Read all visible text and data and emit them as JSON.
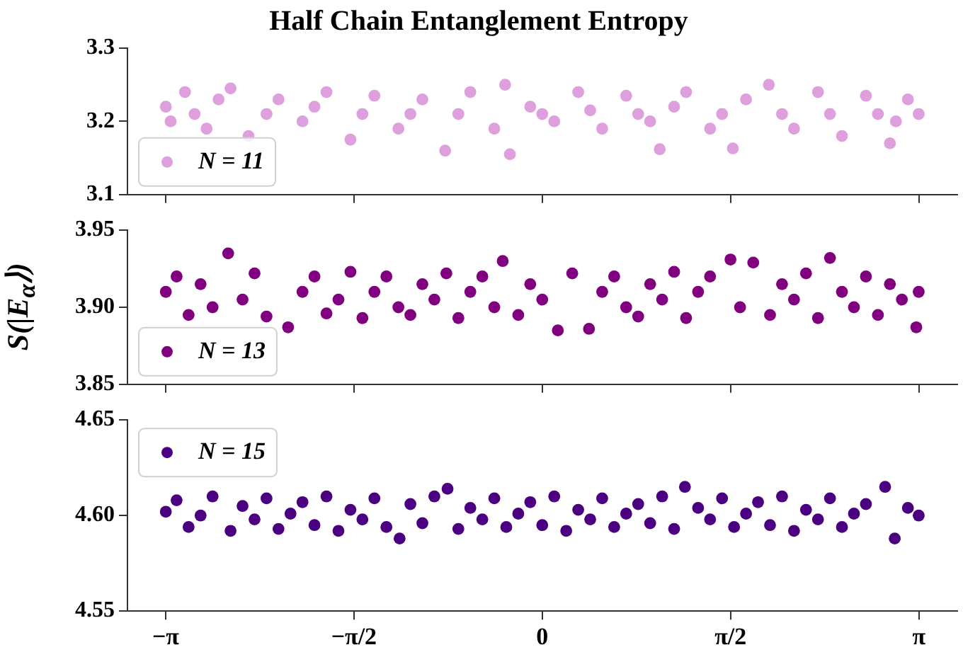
{
  "chart_data": [
    {
      "type": "scatter",
      "title": "Half Chain Entanglement Entropy",
      "xlim": [
        -3.46,
        3.46
      ],
      "xticks": [
        {
          "value": -3.1416,
          "label": null
        },
        {
          "value": -1.5708,
          "label": null
        },
        {
          "value": 0,
          "label": null
        },
        {
          "value": 1.5708,
          "label": null
        },
        {
          "value": 3.1416,
          "label": null
        }
      ],
      "ylim": [
        3.1,
        3.3
      ],
      "yticks": [
        3.1,
        3.2,
        3.3
      ],
      "tick_labels": "y",
      "grid": false,
      "marker": "circle",
      "legend": "bottom left",
      "series": [
        {
          "name": "N = 11",
          "color": "#dda0dd",
          "x": [
            -3.14,
            -3.1,
            -2.98,
            -2.9,
            -2.8,
            -2.7,
            -2.6,
            -2.45,
            -2.3,
            -2.2,
            -2.0,
            -1.9,
            -1.8,
            -1.6,
            -1.5,
            -1.4,
            -1.2,
            -1.1,
            -1.0,
            -0.81,
            -0.7,
            -0.6,
            -0.4,
            -0.31,
            -0.27,
            -0.1,
            0.0,
            0.1,
            0.3,
            0.4,
            0.5,
            0.7,
            0.8,
            0.9,
            0.98,
            1.1,
            1.2,
            1.4,
            1.5,
            1.59,
            1.7,
            1.89,
            2.0,
            2.1,
            2.3,
            2.4,
            2.5,
            2.7,
            2.8,
            2.9,
            2.95,
            3.05,
            3.14
          ],
          "values": [
            3.22,
            3.2,
            3.24,
            3.21,
            3.19,
            3.23,
            3.245,
            3.18,
            3.21,
            3.23,
            3.2,
            3.22,
            3.24,
            3.175,
            3.21,
            3.235,
            3.19,
            3.21,
            3.23,
            3.16,
            3.21,
            3.24,
            3.19,
            3.25,
            3.155,
            3.22,
            3.21,
            3.2,
            3.24,
            3.215,
            3.19,
            3.235,
            3.21,
            3.2,
            3.162,
            3.22,
            3.24,
            3.19,
            3.21,
            3.163,
            3.23,
            3.25,
            3.21,
            3.19,
            3.24,
            3.21,
            3.18,
            3.235,
            3.21,
            3.17,
            3.2,
            3.23,
            3.21
          ]
        }
      ]
    },
    {
      "type": "scatter",
      "ylabel": "S(|E$_{α}$⟩)",
      "xlim": [
        -3.46,
        3.46
      ],
      "xticks": [
        {
          "value": -3.1416,
          "label": null
        },
        {
          "value": -1.5708,
          "label": null
        },
        {
          "value": 0,
          "label": null
        },
        {
          "value": 1.5708,
          "label": null
        },
        {
          "value": 3.1416,
          "label": null
        }
      ],
      "ylim": [
        3.85,
        3.95
      ],
      "yticks": [
        {
          "value": 3.85,
          "label": "3.85"
        },
        {
          "value": 3.9,
          "label": "3.90"
        },
        {
          "value": 3.95,
          "label": "3.95"
        }
      ],
      "tick_labels": "y",
      "grid": false,
      "marker": "circle",
      "legend": "bottom left",
      "series": [
        {
          "name": "N = 13",
          "color": "#800080",
          "x": [
            -3.14,
            -3.05,
            -2.95,
            -2.85,
            -2.75,
            -2.62,
            -2.5,
            -2.4,
            -2.3,
            -2.12,
            -2.0,
            -1.9,
            -1.8,
            -1.7,
            -1.6,
            -1.5,
            -1.4,
            -1.3,
            -1.2,
            -1.1,
            -1.0,
            -0.9,
            -0.8,
            -0.7,
            -0.6,
            -0.5,
            -0.4,
            -0.33,
            -0.2,
            -0.1,
            0.0,
            0.13,
            0.25,
            0.39,
            0.5,
            0.6,
            0.7,
            0.8,
            0.9,
            1.0,
            1.1,
            1.2,
            1.3,
            1.4,
            1.57,
            1.65,
            1.76,
            1.9,
            2.0,
            2.1,
            2.2,
            2.3,
            2.4,
            2.5,
            2.6,
            2.7,
            2.8,
            2.9,
            3.0,
            3.12,
            3.14
          ],
          "values": [
            3.91,
            3.92,
            3.895,
            3.915,
            3.9,
            3.935,
            3.905,
            3.922,
            3.894,
            3.887,
            3.91,
            3.92,
            3.896,
            3.905,
            3.923,
            3.893,
            3.91,
            3.92,
            3.9,
            3.895,
            3.915,
            3.905,
            3.922,
            3.893,
            3.91,
            3.92,
            3.9,
            3.93,
            3.895,
            3.915,
            3.905,
            3.885,
            3.922,
            3.886,
            3.91,
            3.92,
            3.9,
            3.894,
            3.915,
            3.905,
            3.923,
            3.893,
            3.91,
            3.92,
            3.931,
            3.9,
            3.929,
            3.895,
            3.915,
            3.905,
            3.922,
            3.893,
            3.932,
            3.91,
            3.9,
            3.92,
            3.895,
            3.915,
            3.905,
            3.887,
            3.91
          ]
        }
      ]
    },
    {
      "type": "scatter",
      "xlim": [
        -3.46,
        3.46
      ],
      "xticks": [
        {
          "value": -3.1416,
          "label": "−π"
        },
        {
          "value": -1.5708,
          "label": "−π/2"
        },
        {
          "value": 0,
          "label": "0"
        },
        {
          "value": 1.5708,
          "label": "π/2"
        },
        {
          "value": 3.1416,
          "label": "π"
        }
      ],
      "ylim": [
        4.55,
        4.65
      ],
      "yticks": [
        {
          "value": 4.55,
          "label": "4.55"
        },
        {
          "value": 4.6,
          "label": "4.60"
        },
        {
          "value": 4.65,
          "label": "4.65"
        }
      ],
      "grid": false,
      "marker": "circle",
      "legend": "top left",
      "series": [
        {
          "name": "N = 15",
          "color": "#4b0082",
          "x": [
            -3.14,
            -3.05,
            -2.95,
            -2.85,
            -2.75,
            -2.6,
            -2.5,
            -2.4,
            -2.3,
            -2.2,
            -2.1,
            -2.0,
            -1.9,
            -1.8,
            -1.7,
            -1.6,
            -1.5,
            -1.4,
            -1.3,
            -1.19,
            -1.1,
            -1.0,
            -0.9,
            -0.79,
            -0.7,
            -0.6,
            -0.5,
            -0.4,
            -0.3,
            -0.2,
            -0.1,
            0.0,
            0.1,
            0.2,
            0.3,
            0.4,
            0.5,
            0.6,
            0.7,
            0.8,
            0.9,
            1.0,
            1.1,
            1.19,
            1.3,
            1.4,
            1.5,
            1.6,
            1.7,
            1.8,
            1.9,
            2.0,
            2.1,
            2.2,
            2.3,
            2.4,
            2.5,
            2.6,
            2.7,
            2.86,
            2.94,
            3.05,
            3.14
          ],
          "values": [
            4.602,
            4.608,
            4.594,
            4.6,
            4.61,
            4.592,
            4.605,
            4.598,
            4.609,
            4.593,
            4.601,
            4.607,
            4.595,
            4.61,
            4.592,
            4.603,
            4.598,
            4.609,
            4.594,
            4.588,
            4.606,
            4.596,
            4.61,
            4.614,
            4.593,
            4.604,
            4.598,
            4.609,
            4.594,
            4.601,
            4.607,
            4.595,
            4.61,
            4.592,
            4.603,
            4.598,
            4.609,
            4.594,
            4.601,
            4.606,
            4.596,
            4.61,
            4.593,
            4.615,
            4.604,
            4.598,
            4.609,
            4.594,
            4.601,
            4.607,
            4.595,
            4.61,
            4.592,
            4.603,
            4.598,
            4.609,
            4.594,
            4.601,
            4.606,
            4.615,
            4.588,
            4.604,
            4.6
          ]
        }
      ]
    }
  ]
}
